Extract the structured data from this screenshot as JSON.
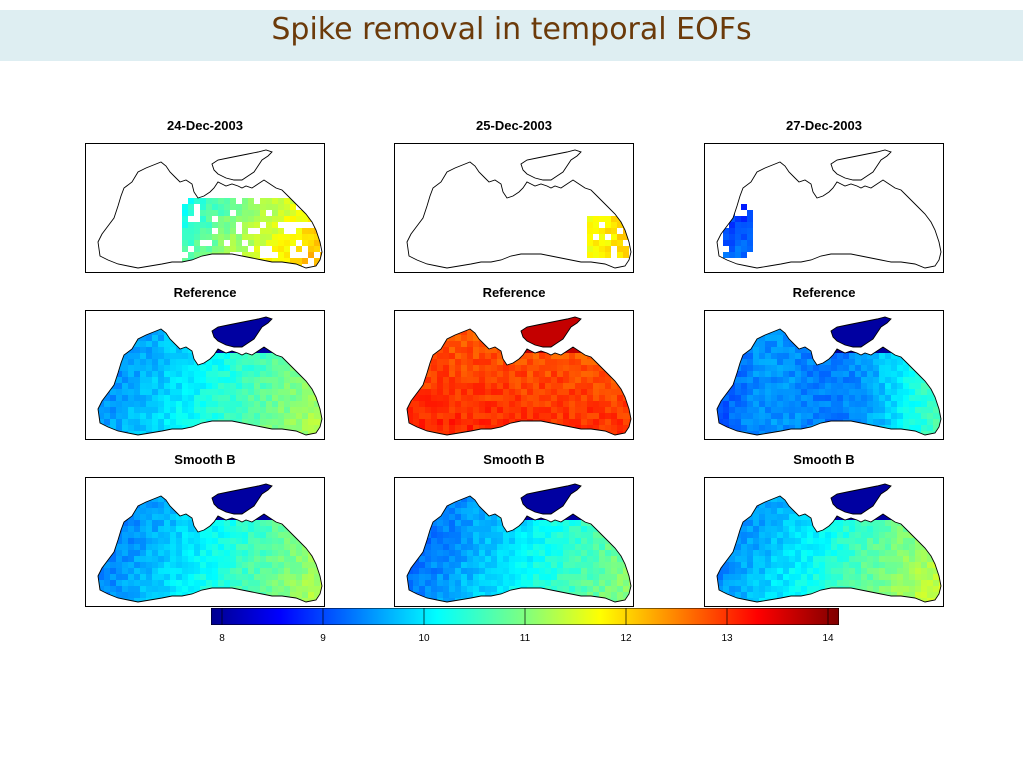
{
  "slide": {
    "title": "Spike removal in temporal EOFs"
  },
  "columns": [
    {
      "title": "24-Dec-2003",
      "rows": [
        "Reference",
        "Smooth B"
      ]
    },
    {
      "title": "25-Dec-2003",
      "rows": [
        "Reference",
        "Smooth B"
      ]
    },
    {
      "title": "27-Dec-2003",
      "rows": [
        "Reference",
        "Smooth B"
      ]
    }
  ],
  "colorbar": {
    "colormap": "jet",
    "range": [
      8,
      14
    ],
    "ticks": [
      "8",
      "9",
      "10",
      "11",
      "12",
      "13",
      "14"
    ]
  },
  "colors": {
    "title_band": "#deeef2",
    "title_text": "#6b3a0a"
  }
}
